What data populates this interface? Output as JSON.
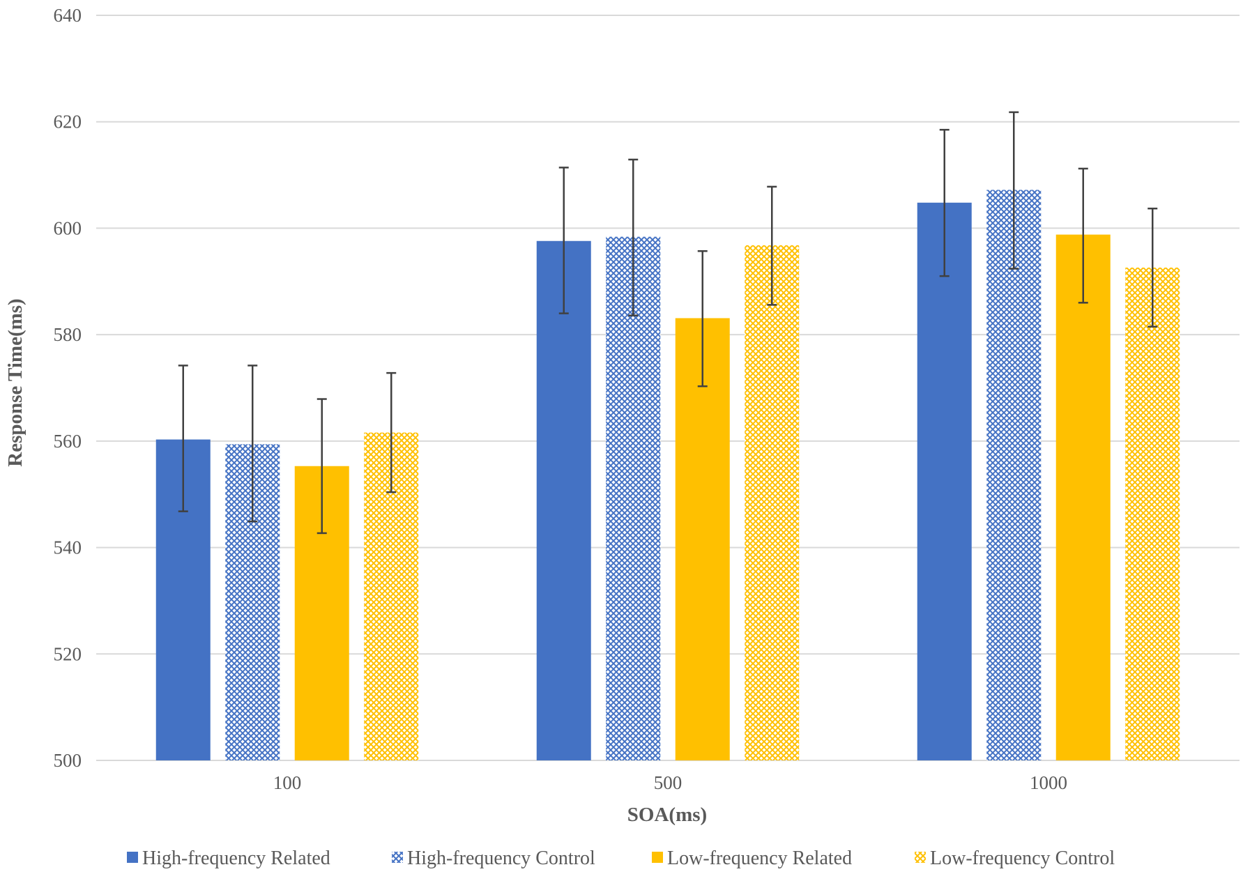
{
  "chart_data": {
    "type": "bar",
    "title": "",
    "xlabel": "SOA(ms)",
    "ylabel": "Response Time(ms)",
    "ylim": [
      500,
      640
    ],
    "yticks": [
      500,
      520,
      540,
      560,
      580,
      600,
      620,
      640
    ],
    "grid": true,
    "legend_position": "bottom",
    "categories": [
      "100",
      "500",
      "1000"
    ],
    "series": [
      {
        "name": "High-frequency  Related",
        "color": "#4472C4",
        "pattern": "solid",
        "values": [
          560.3,
          597.6,
          604.8
        ],
        "error_low": [
          546.8,
          584.0,
          591.0
        ],
        "error_high": [
          574.2,
          611.4,
          618.5
        ]
      },
      {
        "name": "High-frequency  Control",
        "color": "#4472C4",
        "pattern": "crosshatch",
        "values": [
          559.4,
          598.4,
          607.2
        ],
        "error_low": [
          544.9,
          583.6,
          592.4
        ],
        "error_high": [
          574.2,
          612.9,
          621.8
        ]
      },
      {
        "name": "Low-frequency  Related",
        "color": "#FFC000",
        "pattern": "solid",
        "values": [
          555.3,
          583.1,
          598.8
        ],
        "error_low": [
          542.7,
          570.3,
          586.0
        ],
        "error_high": [
          567.9,
          595.7,
          611.2
        ]
      },
      {
        "name": "Low-frequency  Control",
        "color": "#FFC000",
        "pattern": "crosshatch",
        "values": [
          561.6,
          596.8,
          592.6
        ],
        "error_low": [
          550.4,
          585.6,
          581.5
        ],
        "error_high": [
          572.8,
          607.8,
          603.7
        ]
      }
    ]
  }
}
